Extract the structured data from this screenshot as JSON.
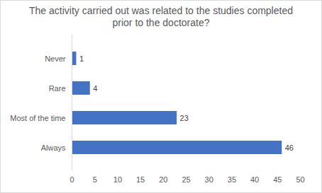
{
  "chart_data": {
    "type": "bar",
    "orientation": "horizontal",
    "title": "The activity carried out was related to the studies completed prior to the doctorate?",
    "categories": [
      "Never",
      "Rare",
      "Most of the time",
      "Always"
    ],
    "values": [
      1,
      4,
      23,
      46
    ],
    "color": "#4472c4",
    "xlim": [
      0,
      50
    ],
    "xticks": [
      0,
      5,
      10,
      15,
      20,
      25,
      30,
      35,
      40,
      45,
      50
    ],
    "grid": false,
    "data_labels": true
  }
}
